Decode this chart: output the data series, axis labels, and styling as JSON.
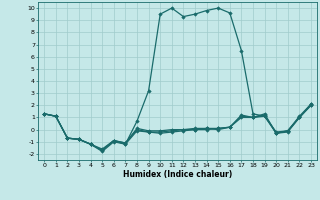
{
  "xlabel": "Humidex (Indice chaleur)",
  "xlim": [
    -0.5,
    23.5
  ],
  "ylim": [
    -2.5,
    10.5
  ],
  "yticks": [
    -2,
    -1,
    0,
    1,
    2,
    3,
    4,
    5,
    6,
    7,
    8,
    9,
    10
  ],
  "xticks": [
    0,
    1,
    2,
    3,
    4,
    5,
    6,
    7,
    8,
    9,
    10,
    11,
    12,
    13,
    14,
    15,
    16,
    17,
    18,
    19,
    20,
    21,
    22,
    23
  ],
  "background_color": "#c5e8e8",
  "grid_color": "#a0cccc",
  "line_color": "#1a6b6b",
  "line_width": 0.9,
  "marker": "D",
  "marker_size": 1.8,
  "lines": [
    {
      "x": [
        0,
        1,
        2,
        3,
        4,
        5,
        6,
        7,
        8,
        9,
        10,
        11,
        12,
        13,
        14,
        15,
        16,
        17,
        18,
        19,
        20,
        21,
        22,
        23
      ],
      "y": [
        1.3,
        1.1,
        -0.7,
        -0.8,
        -1.2,
        -1.8,
        -1.0,
        -1.2,
        0.7,
        3.2,
        9.5,
        10.0,
        9.3,
        9.5,
        9.8,
        10.0,
        9.6,
        6.5,
        1.3,
        1.1,
        -0.2,
        -0.1,
        1.0,
        2.1
      ]
    },
    {
      "x": [
        0,
        1,
        2,
        3,
        4,
        5,
        6,
        7,
        8,
        9,
        10,
        11,
        12,
        13,
        14,
        15,
        16,
        17,
        18,
        19,
        20,
        21,
        22,
        23
      ],
      "y": [
        1.3,
        1.1,
        -0.7,
        -0.8,
        -1.2,
        -1.6,
        -0.9,
        -1.1,
        0.1,
        -0.1,
        -0.1,
        0.0,
        0.0,
        0.1,
        0.1,
        0.1,
        0.2,
        1.2,
        1.0,
        1.3,
        -0.3,
        -0.1,
        1.1,
        2.1
      ]
    },
    {
      "x": [
        0,
        1,
        2,
        3,
        4,
        5,
        6,
        7,
        8,
        9,
        10,
        11,
        12,
        13,
        14,
        15,
        16,
        17,
        18,
        19,
        20,
        21,
        22,
        23
      ],
      "y": [
        1.3,
        1.1,
        -0.7,
        -0.8,
        -1.2,
        -1.7,
        -0.9,
        -1.1,
        0.0,
        -0.2,
        -0.2,
        -0.1,
        0.0,
        0.0,
        0.1,
        0.0,
        0.2,
        1.1,
        1.0,
        1.2,
        -0.3,
        -0.2,
        1.0,
        2.0
      ]
    },
    {
      "x": [
        0,
        1,
        2,
        3,
        4,
        5,
        6,
        7,
        8,
        9,
        10,
        11,
        12,
        13,
        14,
        15,
        16,
        17,
        18,
        19,
        20,
        21,
        22,
        23
      ],
      "y": [
        1.3,
        1.1,
        -0.7,
        -0.8,
        -1.2,
        -1.7,
        -0.9,
        -1.2,
        -0.1,
        -0.2,
        -0.3,
        -0.2,
        -0.1,
        0.0,
        0.0,
        0.1,
        0.2,
        1.0,
        1.0,
        1.1,
        -0.3,
        -0.1,
        1.0,
        2.0
      ]
    }
  ]
}
